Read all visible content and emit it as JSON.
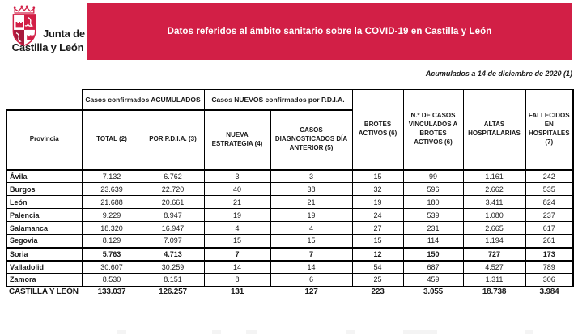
{
  "colors": {
    "brand_red": "#d21f46",
    "brand_dark_red": "#a61b3d",
    "banner_text": "#ffffff",
    "table_border": "#000000",
    "text": "#1a1a1a"
  },
  "logo": {
    "line1": "Junta de",
    "line2": "Castilla y León",
    "emblem": "castilla-y-leon-coat-of-arms"
  },
  "banner": {
    "text": "Datos referidos al ámbito sanitario sobre la COVID-19 en Castilla y León"
  },
  "date_note": "Acumulados a 14 de diciembre de 2020 (1)",
  "table": {
    "group_headers": {
      "accumulated": "Casos confirmados ACUMULADOS",
      "new_pdia": "Casos NUEVOS confirmados por P.D.I.A."
    },
    "columns": [
      "Provincia",
      "TOTAL (2)",
      "POR P.D.I.A. (3)",
      "NUEVA ESTRATEGIA (4)",
      "CASOS DIAGNOSTICADOS DÍA ANTERIOR (5)",
      "BROTES ACTIVOS (6)",
      "N.º DE CASOS VINCULADOS A BROTES ACTIVOS (6)",
      "ALTAS HOSPITALARIAS",
      "FALLECIDOS EN HOSPITALES (7)"
    ],
    "rows": [
      {
        "provincia": "Ávila",
        "values": [
          "7.132",
          "6.762",
          "3",
          "3",
          "15",
          "99",
          "1.161",
          "242"
        ],
        "bold": false
      },
      {
        "provincia": "Burgos",
        "values": [
          "23.639",
          "22.720",
          "40",
          "38",
          "32",
          "596",
          "2.662",
          "535"
        ],
        "bold": false
      },
      {
        "provincia": "León",
        "values": [
          "21.688",
          "20.661",
          "21",
          "21",
          "19",
          "180",
          "3.411",
          "824"
        ],
        "bold": false
      },
      {
        "provincia": "Palencia",
        "values": [
          "9.229",
          "8.947",
          "19",
          "19",
          "24",
          "539",
          "1.080",
          "237"
        ],
        "bold": false
      },
      {
        "provincia": "Salamanca",
        "values": [
          "18.320",
          "16.947",
          "4",
          "4",
          "27",
          "231",
          "2.665",
          "617"
        ],
        "bold": false
      },
      {
        "provincia": "Segovia",
        "values": [
          "8.129",
          "7.097",
          "15",
          "15",
          "15",
          "114",
          "1.194",
          "261"
        ],
        "bold": false
      },
      {
        "provincia": "Soria",
        "values": [
          "5.763",
          "4.713",
          "7",
          "7",
          "12",
          "150",
          "727",
          "173"
        ],
        "bold": true
      },
      {
        "provincia": "Valladolid",
        "values": [
          "30.607",
          "30.259",
          "14",
          "14",
          "54",
          "687",
          "4.527",
          "789"
        ],
        "bold": false
      },
      {
        "provincia": "Zamora",
        "values": [
          "8.530",
          "8.151",
          "8",
          "6",
          "25",
          "459",
          "1.311",
          "306"
        ],
        "bold": false
      }
    ],
    "total_row": {
      "label": "CASTILLA Y LEÓN",
      "values": [
        "133.037",
        "126.257",
        "131",
        "127",
        "223",
        "3.055",
        "18.738",
        "3.984"
      ]
    }
  }
}
